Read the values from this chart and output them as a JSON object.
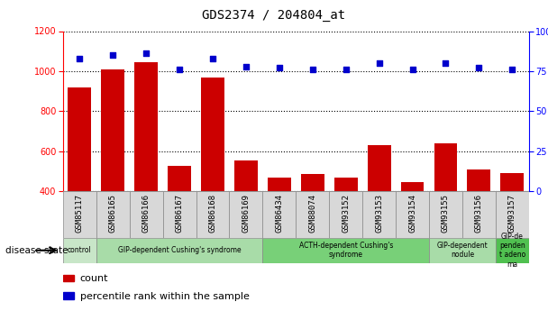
{
  "title": "GDS2374 / 204804_at",
  "categories": [
    "GSM85117",
    "GSM86165",
    "GSM86166",
    "GSM86167",
    "GSM86168",
    "GSM86169",
    "GSM86434",
    "GSM88074",
    "GSM93152",
    "GSM93153",
    "GSM93154",
    "GSM93155",
    "GSM93156",
    "GSM93157"
  ],
  "count_values": [
    920,
    1010,
    1045,
    525,
    968,
    555,
    470,
    488,
    468,
    632,
    448,
    640,
    510,
    492
  ],
  "percentile_values": [
    83,
    85,
    86,
    76,
    83,
    78,
    77,
    76,
    76,
    80,
    76,
    80,
    77,
    76
  ],
  "bar_color": "#cc0000",
  "dot_color": "#0000cc",
  "ylim_left": [
    400,
    1200
  ],
  "ylim_right": [
    0,
    100
  ],
  "yticks_left": [
    400,
    600,
    800,
    1000,
    1200
  ],
  "yticks_right": [
    0,
    25,
    50,
    75,
    100
  ],
  "disease_groups": [
    {
      "label": "control",
      "start": 0,
      "end": 1,
      "color": "#c8e6c8"
    },
    {
      "label": "GIP-dependent Cushing's syndrome",
      "start": 1,
      "end": 6,
      "color": "#a8dca8"
    },
    {
      "label": "ACTH-dependent Cushing's\nsyndrome",
      "start": 6,
      "end": 11,
      "color": "#78d078"
    },
    {
      "label": "GIP-dependent\nnodule",
      "start": 11,
      "end": 13,
      "color": "#a8dca8"
    },
    {
      "label": "GIP-de\npenden\nt adeno\nma",
      "start": 13,
      "end": 14,
      "color": "#50c050"
    }
  ],
  "tick_label_fontsize": 6.5,
  "title_fontsize": 10,
  "background_color": "#ffffff"
}
